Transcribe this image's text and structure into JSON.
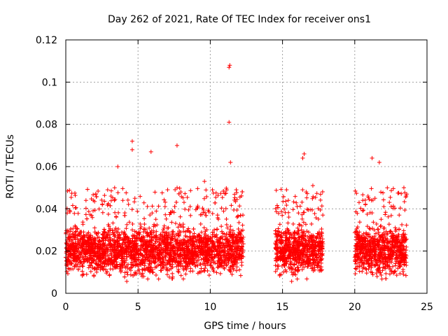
{
  "chart_data": {
    "type": "scatter",
    "title": "Day 262 of 2021, Rate Of TEC Index for receiver ons1",
    "xlabel": "GPS time / hours",
    "ylabel": "ROTI / TECUs",
    "xlim": [
      0,
      25
    ],
    "ylim": [
      0,
      0.12
    ],
    "x_ticks": [
      0,
      5,
      10,
      15,
      20,
      25
    ],
    "x_tick_labels": [
      "0",
      "5",
      "10",
      "15",
      "20",
      "25"
    ],
    "y_ticks": [
      0,
      0.02,
      0.04,
      0.06,
      0.08,
      0.1,
      0.12
    ],
    "y_tick_labels": [
      "0",
      "0.02",
      "0.04",
      "0.06",
      "0.08",
      "0.1",
      "0.12"
    ],
    "grid": true,
    "marker": "+",
    "series_color": "#ff0000",
    "data_segments": [
      {
        "x_start": 0.0,
        "x_end": 12.3,
        "typical_min": 0.006,
        "typical_max": 0.035
      },
      {
        "x_start": 14.5,
        "x_end": 17.8,
        "typical_min": 0.006,
        "typical_max": 0.035
      },
      {
        "x_start": 20.0,
        "x_end": 23.6,
        "typical_min": 0.006,
        "typical_max": 0.035
      }
    ],
    "notable_points": [
      {
        "x": 11.3,
        "y": 0.107
      },
      {
        "x": 11.35,
        "y": 0.108
      },
      {
        "x": 11.3,
        "y": 0.081
      },
      {
        "x": 4.6,
        "y": 0.072
      },
      {
        "x": 4.6,
        "y": 0.068
      },
      {
        "x": 5.9,
        "y": 0.067
      },
      {
        "x": 7.7,
        "y": 0.07
      },
      {
        "x": 3.6,
        "y": 0.06
      },
      {
        "x": 11.4,
        "y": 0.062
      },
      {
        "x": 16.5,
        "y": 0.066
      },
      {
        "x": 16.4,
        "y": 0.064
      },
      {
        "x": 21.2,
        "y": 0.064
      },
      {
        "x": 21.7,
        "y": 0.062
      },
      {
        "x": 9.6,
        "y": 0.053
      },
      {
        "x": 11.8,
        "y": 0.049
      },
      {
        "x": 17.1,
        "y": 0.051
      },
      {
        "x": 0.1,
        "y": 0.038
      },
      {
        "x": 23.4,
        "y": 0.05
      },
      {
        "x": 23.6,
        "y": 0.047
      },
      {
        "x": 20.3,
        "y": 0.043
      }
    ]
  }
}
